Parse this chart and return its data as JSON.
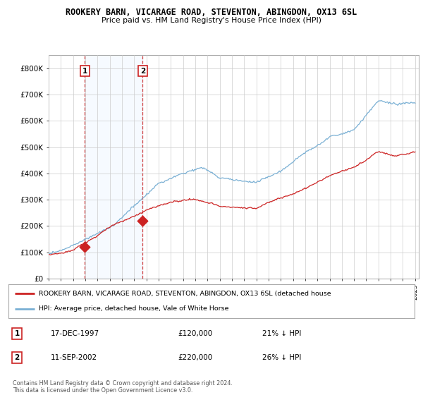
{
  "title_line1": "ROOKERY BARN, VICARAGE ROAD, STEVENTON, ABINGDON, OX13 6SL",
  "title_line2": "Price paid vs. HM Land Registry's House Price Index (HPI)",
  "ylim": [
    0,
    850000
  ],
  "yticks": [
    0,
    100000,
    200000,
    300000,
    400000,
    500000,
    600000,
    700000,
    800000
  ],
  "ytick_labels": [
    "£0",
    "£100K",
    "£200K",
    "£300K",
    "£400K",
    "£500K",
    "£600K",
    "£700K",
    "£800K"
  ],
  "purchase1": {
    "date_num": 1997.96,
    "price": 120000,
    "label": "1"
  },
  "purchase2": {
    "date_num": 2002.7,
    "price": 220000,
    "label": "2"
  },
  "hpi_color": "#7ab0d4",
  "price_color": "#cc2222",
  "shade_color": "#ddeeff",
  "legend_label_red": "ROOKERY BARN, VICARAGE ROAD, STEVENTON, ABINGDON, OX13 6SL (detached house",
  "legend_label_blue": "HPI: Average price, detached house, Vale of White Horse",
  "table_row1": [
    "1",
    "17-DEC-1997",
    "£120,000",
    "21% ↓ HPI"
  ],
  "table_row2": [
    "2",
    "11-SEP-2002",
    "£220,000",
    "26% ↓ HPI"
  ],
  "footnote": "Contains HM Land Registry data © Crown copyright and database right 2024.\nThis data is licensed under the Open Government Licence v3.0.",
  "background_color": "#ffffff",
  "grid_color": "#cccccc"
}
